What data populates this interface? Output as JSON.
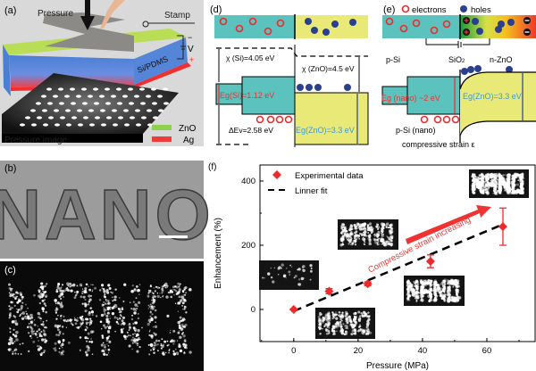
{
  "panels": {
    "a": {
      "label": "(a)",
      "pressure": "Pressure",
      "stamp": "Stamp",
      "v": "V",
      "minus": "−",
      "plus": "+",
      "layer": "Si/PDMS",
      "image_caption": "Pressure image",
      "legend": [
        {
          "name": "ZnO",
          "color": "#8fd14f"
        },
        {
          "name": "Ag",
          "color": "#f03a3a"
        }
      ]
    },
    "b": {
      "label": "(b)",
      "word": "NANO"
    },
    "c": {
      "label": "(c)"
    },
    "d": {
      "label": "(d)",
      "chi_si": "χ (Si)=4.05 eV",
      "chi_zno": "χ (ZnO)=4.5 eV",
      "eg_si": "Eg(Si)=1.12 eV",
      "eg_zno": "Eg(ZnO)=3.3 eV",
      "dev": "ΔEv=2.58 eV"
    },
    "e": {
      "label": "(e)",
      "electrons": "electrons",
      "holes": "holes",
      "psi": "p-Si",
      "sio2": "SiO",
      "sio2_sub": "2",
      "nzno": "n-ZnO",
      "eg_nano": "Eg (nano) ~2 eV",
      "eg_zno": "Eg(ZnO)=3.3 eV",
      "psi_nano": "p-Si (nano)",
      "strain": "compressive strain ε"
    },
    "f": {
      "label": "(f)",
      "annotation": "Compressive strain increasing"
    }
  },
  "colors": {
    "si": "#5cc2bd",
    "zno": "#e9e977",
    "electron": "#ee2a2a",
    "hole": "#2b3f8f",
    "red_text": "#ee3333",
    "blue_text": "#3a9ad9"
  },
  "chart_data": {
    "type": "scatter",
    "xlabel": "Pressure (MPa)",
    "ylabel": "Enhancement (%)",
    "xlim": [
      -10.5,
      75
    ],
    "ylim": [
      -100,
      450
    ],
    "xticks": [
      0,
      20,
      40,
      60
    ],
    "yticks": [
      0,
      200,
      400
    ],
    "series": [
      {
        "name": "Experimental data",
        "marker": "diamond",
        "color": "#ee2a2a",
        "points": [
          {
            "x": 0,
            "y": 0,
            "err": 0
          },
          {
            "x": 11,
            "y": 57,
            "err": 8
          },
          {
            "x": 23,
            "y": 80,
            "err": 6
          },
          {
            "x": 42.5,
            "y": 150,
            "err": 20
          },
          {
            "x": 65,
            "y": 258,
            "err": 58
          }
        ]
      },
      {
        "name": "Linner fit",
        "style": "dashed",
        "color": "#000000",
        "line": [
          {
            "x": 0,
            "y": -5
          },
          {
            "x": 65,
            "y": 265
          }
        ]
      }
    ],
    "legend": "top-left",
    "grid": false
  }
}
